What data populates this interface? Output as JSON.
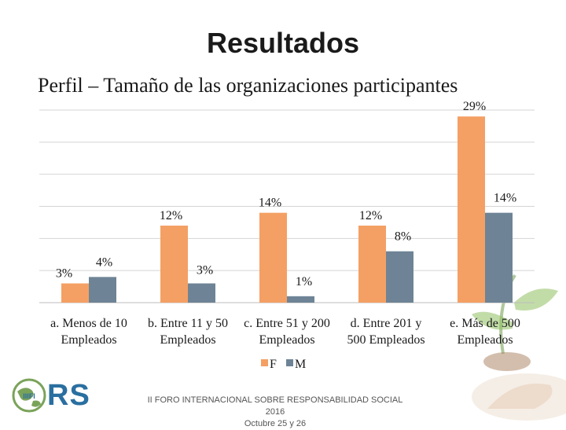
{
  "slide": {
    "title": "Resultados",
    "subtitle": "Perfil – Tamaño de las organizaciones participantes"
  },
  "footer": {
    "logo_text": "RS",
    "logo_small_text": "IIIFI",
    "forum_line1": "II FORO INTERNACIONAL SOBRE RESPONSABILIDAD SOCIAL 2016",
    "forum_line2": "Octubre 25 y 26"
  },
  "colors": {
    "F": "#f4a064",
    "M": "#6e8496",
    "grid": "#d4d4d4",
    "deco_green": "#7aa35a",
    "logo_blue": "#2a6fa0"
  },
  "chart_data": {
    "type": "bar",
    "title": "",
    "xlabel": "",
    "ylabel": "",
    "ylim": [
      0,
      30
    ],
    "grid": true,
    "legend_position": "bottom",
    "categories": [
      [
        "a. Menos de 10",
        "Empleados"
      ],
      [
        "b. Entre 11 y 50",
        "Empleados"
      ],
      [
        "c. Entre 51 y 200",
        "Empleados"
      ],
      [
        "d. Entre 201 y",
        "500 Empleados"
      ],
      [
        "e. Más de 500",
        "Empleados"
      ]
    ],
    "series": [
      {
        "name": "F",
        "values": [
          3,
          12,
          14,
          12,
          29
        ],
        "labels": [
          "3%",
          "12%",
          "14%",
          "12%",
          "29%"
        ]
      },
      {
        "name": "M",
        "values": [
          4,
          3,
          1,
          8,
          14
        ],
        "labels": [
          "4%",
          "3%",
          "1%",
          "8%",
          "14%"
        ]
      }
    ]
  }
}
